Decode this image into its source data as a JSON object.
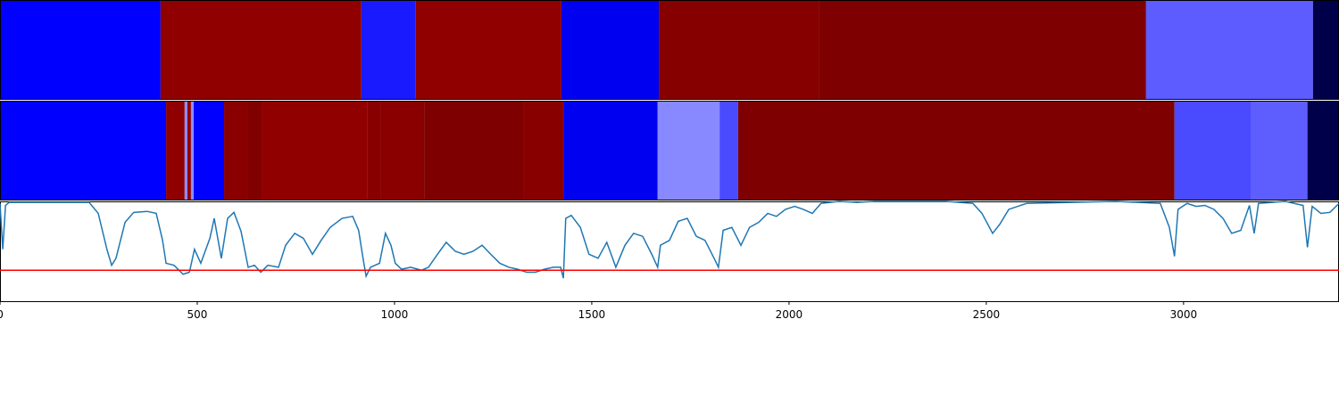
{
  "chart_data": {
    "type": "segments",
    "xlim": [
      0,
      3394
    ],
    "xticks": [
      0,
      500,
      1000,
      1500,
      2000,
      2500,
      3000
    ],
    "bands": [
      {
        "edges": [
          0,
          407,
          916,
          1054,
          1423,
          1670,
          2075,
          2905,
          3328,
          3394
        ],
        "colors": [
          "#0000ff",
          "#910000",
          "#1a1aff",
          "#910000",
          "#0000f0",
          "#870000",
          "#7f0000",
          "#5c5cff",
          "#00004a"
        ]
      },
      {
        "edges": [
          0,
          421,
          468,
          475,
          484,
          491,
          568,
          629,
          663,
          932,
          964,
          1075,
          1326,
          1428,
          1667,
          1824,
          1871,
          2977,
          3170,
          3314,
          3394
        ],
        "colors": [
          "#0000ff",
          "#900000",
          "#8c8cff",
          "#900000",
          "#8c8cff",
          "#0000ff",
          "#8a0000",
          "#800000",
          "#910000",
          "#880000",
          "#8a0000",
          "#7f0000",
          "#880000",
          "#0000f0",
          "#8888ff",
          "#4a4aff",
          "#7f0000",
          "#4a4aff",
          "#5e5eff",
          "#00004a"
        ]
      }
    ],
    "ylim": [
      0,
      1
    ],
    "threshold": 0.31,
    "threshold_color": "#ff0000",
    "series": [
      {
        "color": "#1f77b4",
        "x": [
          0,
          7,
          14,
          23,
          226,
          249,
          271,
          283,
          294,
          317,
          339,
          373,
          396,
          412,
          421,
          441,
          464,
          480,
          493,
          509,
          532,
          543,
          561,
          577,
          593,
          611,
          629,
          645,
          661,
          679,
          706,
          724,
          747,
          769,
          792,
          814,
          837,
          867,
          894,
          909,
          921,
          928,
          939,
          962,
          977,
          991,
          1002,
          1018,
          1041,
          1068,
          1086,
          1109,
          1131,
          1154,
          1176,
          1199,
          1222,
          1244,
          1267,
          1290,
          1312,
          1335,
          1357,
          1380,
          1403,
          1421,
          1428,
          1434,
          1448,
          1471,
          1493,
          1516,
          1538,
          1561,
          1584,
          1606,
          1629,
          1652,
          1667,
          1674,
          1697,
          1719,
          1742,
          1765,
          1787,
          1810,
          1821,
          1833,
          1855,
          1878,
          1900,
          1923,
          1946,
          1968,
          1991,
          2014,
          2036,
          2059,
          2081,
          2127,
          2172,
          2217,
          2262,
          2398,
          2466,
          2489,
          2516,
          2534,
          2557,
          2602,
          2715,
          2828,
          2941,
          2964,
          2977,
          2986,
          3009,
          3032,
          3054,
          3077,
          3100,
          3122,
          3145,
          3167,
          3179,
          3190,
          3258,
          3303,
          3314,
          3326,
          3348,
          3371,
          3394
        ],
        "values": [
          0.98,
          0.52,
          0.96,
          0.99,
          0.99,
          0.88,
          0.52,
          0.36,
          0.43,
          0.79,
          0.89,
          0.9,
          0.88,
          0.61,
          0.38,
          0.36,
          0.27,
          0.29,
          0.52,
          0.38,
          0.63,
          0.83,
          0.43,
          0.83,
          0.89,
          0.7,
          0.34,
          0.36,
          0.29,
          0.36,
          0.34,
          0.56,
          0.68,
          0.63,
          0.47,
          0.61,
          0.74,
          0.83,
          0.85,
          0.71,
          0.41,
          0.25,
          0.34,
          0.38,
          0.68,
          0.56,
          0.38,
          0.32,
          0.34,
          0.31,
          0.34,
          0.47,
          0.59,
          0.5,
          0.47,
          0.5,
          0.56,
          0.47,
          0.38,
          0.34,
          0.32,
          0.29,
          0.29,
          0.32,
          0.34,
          0.34,
          0.23,
          0.83,
          0.86,
          0.74,
          0.47,
          0.43,
          0.59,
          0.34,
          0.56,
          0.68,
          0.65,
          0.47,
          0.34,
          0.56,
          0.61,
          0.8,
          0.83,
          0.65,
          0.61,
          0.43,
          0.34,
          0.71,
          0.74,
          0.56,
          0.74,
          0.79,
          0.88,
          0.85,
          0.92,
          0.95,
          0.92,
          0.88,
          0.98,
          1.0,
          0.99,
          1.0,
          1.0,
          1.0,
          0.98,
          0.88,
          0.68,
          0.77,
          0.92,
          0.98,
          0.99,
          1.0,
          0.98,
          0.74,
          0.45,
          0.92,
          0.98,
          0.95,
          0.96,
          0.92,
          0.83,
          0.68,
          0.71,
          0.96,
          0.68,
          0.98,
          1.0,
          0.96,
          0.54,
          0.95,
          0.88,
          0.89,
          0.98
        ]
      }
    ]
  }
}
